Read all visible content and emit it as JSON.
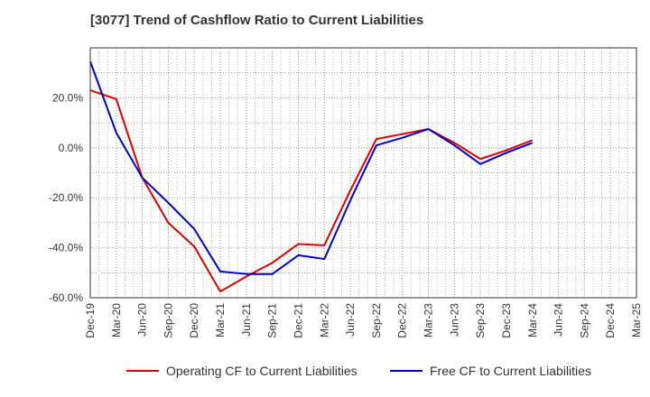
{
  "chart_data": {
    "type": "line",
    "title": "[3077]  Trend of Cashflow Ratio to Current Liabilities",
    "xlabel": "",
    "ylabel": "",
    "x": [
      "Dec-19",
      "Mar-20",
      "Jun-20",
      "Sep-20",
      "Dec-20",
      "Mar-21",
      "Jun-21",
      "Sep-21",
      "Dec-21",
      "Mar-22",
      "Jun-22",
      "Sep-22",
      "Dec-22",
      "Mar-23",
      "Jun-23",
      "Sep-23",
      "Dec-23",
      "Mar-24",
      "Jun-24",
      "Sep-24",
      "Dec-24",
      "Mar-25"
    ],
    "ylim": [
      -60,
      40
    ],
    "yticks": [
      -60,
      -40,
      -20,
      0,
      20
    ],
    "ytick_labels": [
      "-60.0%",
      "-40.0%",
      "-20.0%",
      "0.0%",
      "20.0%"
    ],
    "grid": true,
    "legend_position": "bottom",
    "series": [
      {
        "name": "Operating CF to Current Liabilities",
        "color": "#dd0000",
        "values": [
          23,
          19.5,
          -12,
          -30,
          -39.5,
          -57.5,
          -51.5,
          -46,
          -38.5,
          -39,
          -17,
          3.5,
          5.5,
          7.5,
          2,
          -4.5,
          -1,
          3,
          null,
          null,
          null,
          null
        ]
      },
      {
        "name": "Free CF to Current Liabilities",
        "color": "#0000cc",
        "values": [
          34.5,
          6,
          -12,
          -22,
          -32.5,
          -49.5,
          -50.5,
          -50.5,
          -43,
          -44.5,
          -21,
          1,
          4,
          7.5,
          1,
          -6.5,
          -2,
          2,
          null,
          null,
          null,
          null
        ]
      }
    ]
  }
}
